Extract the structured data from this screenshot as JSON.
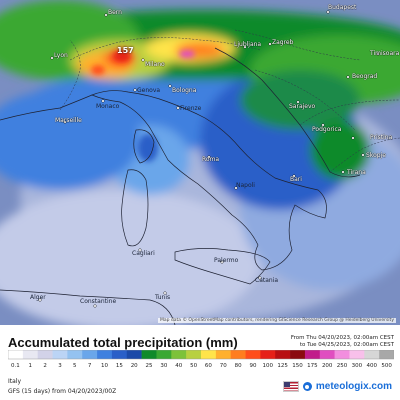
{
  "map": {
    "cities": [
      {
        "name": "Bern",
        "dark": false
      },
      {
        "name": "Lyon",
        "dark": false
      },
      {
        "name": "Milano",
        "dark": false
      },
      {
        "name": "Genova",
        "dark": true
      },
      {
        "name": "Monaco",
        "dark": true
      },
      {
        "name": "Bologna",
        "dark": false
      },
      {
        "name": "Firenze",
        "dark": true
      },
      {
        "name": "Ljubljana",
        "dark": false
      },
      {
        "name": "Zagreb",
        "dark": false
      },
      {
        "name": "Beograd",
        "dark": false
      },
      {
        "name": "Sarajevo",
        "dark": false
      },
      {
        "name": "Podgorica",
        "dark": false
      },
      {
        "name": "Pristina",
        "dark": false
      },
      {
        "name": "Skopje",
        "dark": false
      },
      {
        "name": "Tirana",
        "dark": false
      },
      {
        "name": "Timisoara",
        "dark": false
      },
      {
        "name": "Budapest",
        "dark": false
      },
      {
        "name": "Roma",
        "dark": false
      },
      {
        "name": "Napoli",
        "dark": true
      },
      {
        "name": "Bari",
        "dark": false
      },
      {
        "name": "Palermo",
        "dark": true
      },
      {
        "name": "Catania",
        "dark": true
      },
      {
        "name": "Marseille",
        "dark": false
      },
      {
        "name": "Cagliari",
        "dark": true
      },
      {
        "name": "Alger",
        "dark": true
      },
      {
        "name": "Constantine",
        "dark": true
      },
      {
        "name": "Tunis",
        "dark": true
      }
    ],
    "max_label": "157",
    "credit": "Map data © OpenStreetMap contributors, rendering GIScience Research Group @ Heidelberg University"
  },
  "header": {
    "title": "Accumulated total precipitation (mm)",
    "from": "From Thu 04/20/2023, 02:00am CEST",
    "to": "to Tue 04/25/2023, 02:00am CEST"
  },
  "chart_data": {
    "type": "heatmap",
    "title": "Accumulated total precipitation (mm)",
    "unit": "mm",
    "legend_values": [
      "0.1",
      "1",
      "2",
      "3",
      "5",
      "7",
      "10",
      "15",
      "20",
      "25",
      "30",
      "40",
      "50",
      "60",
      "70",
      "80",
      "90",
      "100",
      "125",
      "150",
      "175",
      "200",
      "250",
      "300",
      "400",
      "500"
    ],
    "legend_colors": [
      "#ffffff",
      "#e8e8f2",
      "#d2d2e8",
      "#bbd4f5",
      "#94c2f0",
      "#6aa6ea",
      "#3f80df",
      "#2a5fc8",
      "#1b49a8",
      "#0f8a2a",
      "#3aa832",
      "#7dc23a",
      "#b8d040",
      "#ffe44a",
      "#ffb02e",
      "#ff7d1e",
      "#ff4d1a",
      "#e62018",
      "#b80f12",
      "#8b0a0f",
      "#c11c8a",
      "#e04ec0",
      "#f28ede",
      "#f8c0ea",
      "#d6d6d6",
      "#a8a8a8"
    ],
    "max_value": 157,
    "from": "Thu 04/20/2023, 02:00am CEST",
    "to": "Tue 04/25/2023, 02:00am CEST"
  },
  "footer": {
    "region": "Italy",
    "model": "GFS (15 days) from  04/20/2023/00Z",
    "brand": "meteologix.com"
  },
  "colors": {
    "sea": "#6f86b8",
    "land_outline": "#1e2233",
    "country_border": "#2e344a"
  }
}
